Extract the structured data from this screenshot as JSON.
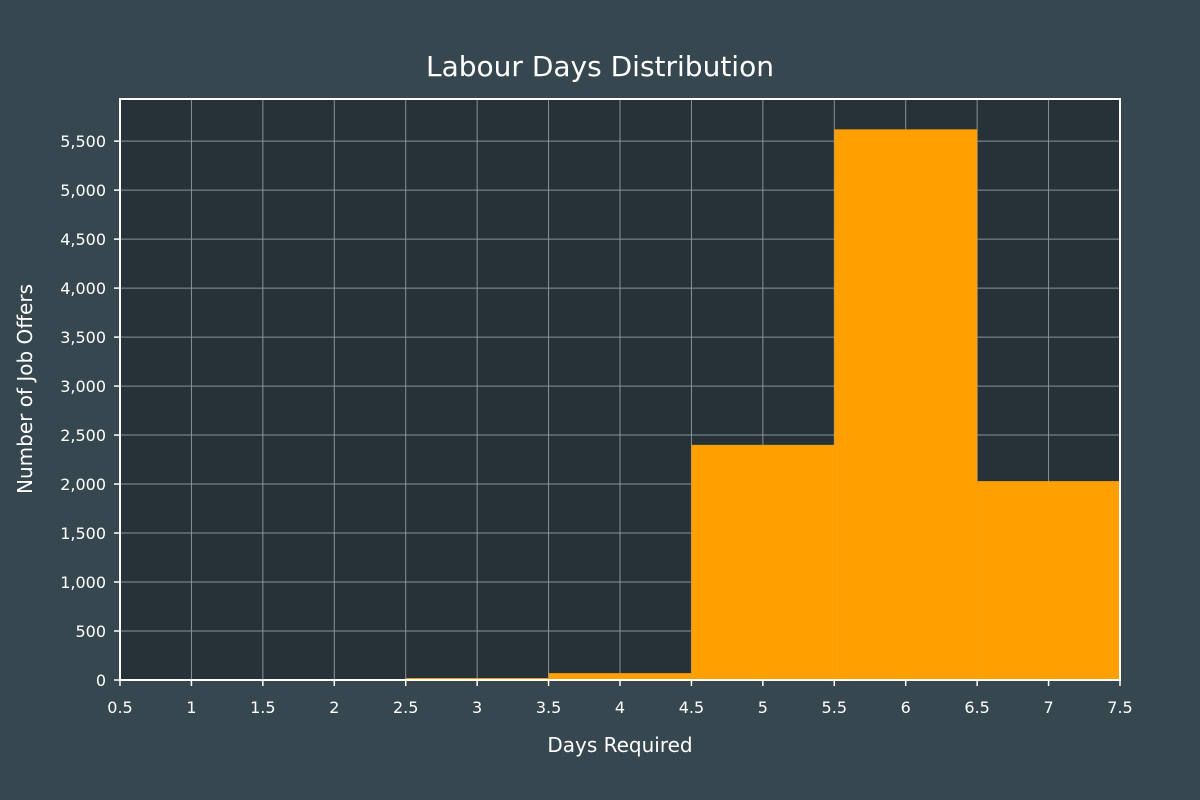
{
  "chart_data": {
    "type": "bar",
    "title": "Labour Days Distribution",
    "xlabel": "Days Required",
    "ylabel": "Number of Job Offers",
    "xlim": [
      0.5,
      7.5
    ],
    "ylim": [
      0,
      5930
    ],
    "x_ticks": [
      "0.5",
      "1",
      "1.5",
      "2",
      "2.5",
      "3",
      "3.5",
      "4",
      "4.5",
      "5",
      "5.5",
      "6",
      "6.5",
      "7",
      "7.5"
    ],
    "y_ticks": [
      "0",
      "500",
      "1,000",
      "1,500",
      "2,000",
      "2,500",
      "3,000",
      "3,500",
      "4,000",
      "4,500",
      "5,000",
      "5,500"
    ],
    "bins": [
      {
        "start": 0.5,
        "end": 1.5,
        "value": 5
      },
      {
        "start": 1.5,
        "end": 2.5,
        "value": 8
      },
      {
        "start": 2.5,
        "end": 3.5,
        "value": 20
      },
      {
        "start": 3.5,
        "end": 4.5,
        "value": 70
      },
      {
        "start": 4.5,
        "end": 5.5,
        "value": 2400
      },
      {
        "start": 5.5,
        "end": 6.5,
        "value": 5620
      },
      {
        "start": 6.5,
        "end": 7.5,
        "value": 2030
      }
    ],
    "grid": true,
    "legend": "none",
    "colors": {
      "background": "#37474f",
      "plot_background": "#263238",
      "bar": "#ffa000",
      "text": "#ffffff",
      "grid": "#8a9399"
    }
  }
}
